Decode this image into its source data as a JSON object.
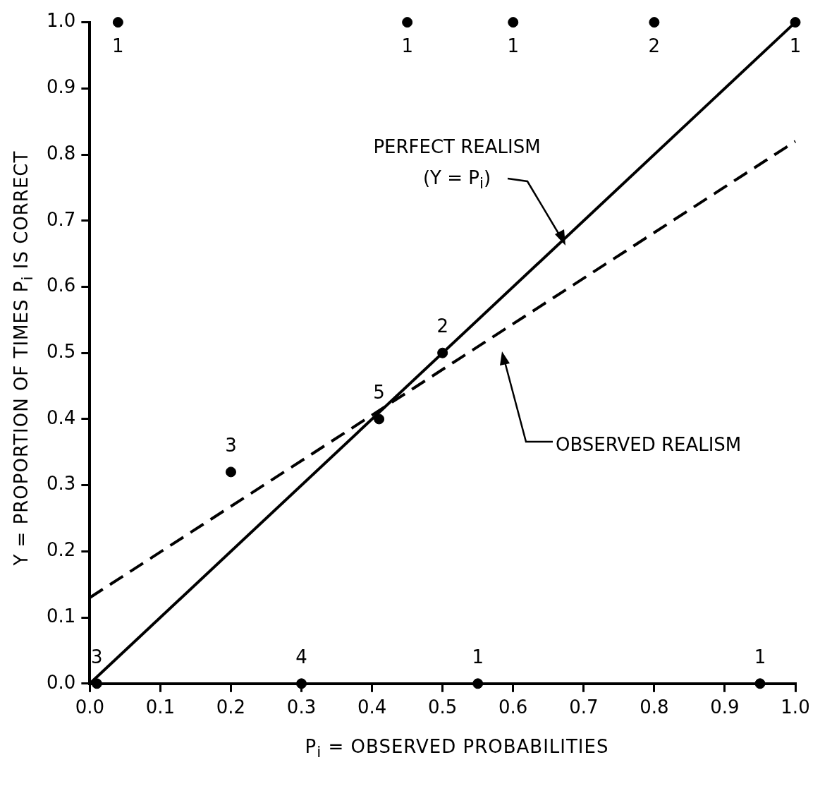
{
  "chart_data": {
    "type": "scatter",
    "xlabel": "P$_{i}$ = OBSERVED PROBABILITIES",
    "ylabel": "Y = PROPORTION OF TIMES P$_{i}$ IS CORRECT",
    "series": [
      {
        "type": "scatter",
        "color": "#000000",
        "marker": "circle",
        "x": [
          0.04,
          0.45,
          0.6,
          0.8,
          1.0,
          0.2,
          0.41,
          0.5,
          0.01,
          0.3,
          0.55,
          0.95
        ],
        "values": [
          1.0,
          1.0,
          1.0,
          1.0,
          1.0,
          0.32,
          0.4,
          0.5,
          0.0,
          0.0,
          0.0,
          0.0
        ]
      },
      {
        "type": "line",
        "color": "#000000",
        "marker": "none",
        "line_style": "solid",
        "x": [
          0,
          1
        ],
        "values": [
          0,
          1
        ]
      },
      {
        "type": "line",
        "color": "#000000",
        "marker": "none",
        "line_style": "dashed",
        "x": [
          0,
          1
        ],
        "values": [
          0.13,
          0.82
        ]
      }
    ],
    "annotations": [
      "PERFECT REALISM\n(Y = P$_{i}$)",
      "OBSERVED REALISM",
      {
        "text": "1",
        "x": 0.04,
        "y": 1.0
      },
      {
        "text": "1",
        "x": 0.45,
        "y": 1.0
      },
      {
        "text": "1",
        "x": 0.6,
        "y": 1.0
      },
      {
        "text": "2",
        "x": 0.8,
        "y": 1.0
      },
      {
        "text": "1",
        "x": 1.0,
        "y": 1.0
      },
      {
        "text": "3",
        "x": 0.2,
        "y": 0.32
      },
      {
        "text": "5",
        "x": 0.41,
        "y": 0.4
      },
      {
        "text": "2",
        "x": 0.5,
        "y": 0.5
      },
      {
        "text": "3",
        "x": 0.01,
        "y": 0.0
      },
      {
        "text": "4",
        "x": 0.3,
        "y": 0.0
      },
      {
        "text": "1",
        "x": 0.55,
        "y": 0.0
      },
      {
        "text": "1",
        "x": 0.95,
        "y": 0.0
      }
    ],
    "xlim": [
      0,
      1.0
    ],
    "ylim": [
      0,
      1.0
    ],
    "xticks": [
      {
        "value": 0,
        "label": "0.0"
      },
      0.1,
      0.2,
      0.3,
      0.4,
      0.5,
      0.6,
      0.7,
      0.8,
      0.9,
      {
        "value": 1,
        "label": "1.0"
      }
    ],
    "yticks": [
      {
        "value": 0,
        "label": "0.0"
      },
      0.1,
      0.2,
      0.3,
      0.4,
      0.5,
      0.6,
      0.7,
      0.8,
      0.9,
      {
        "value": 1,
        "label": "1.0"
      }
    ],
    "grid": false,
    "legend": false
  }
}
